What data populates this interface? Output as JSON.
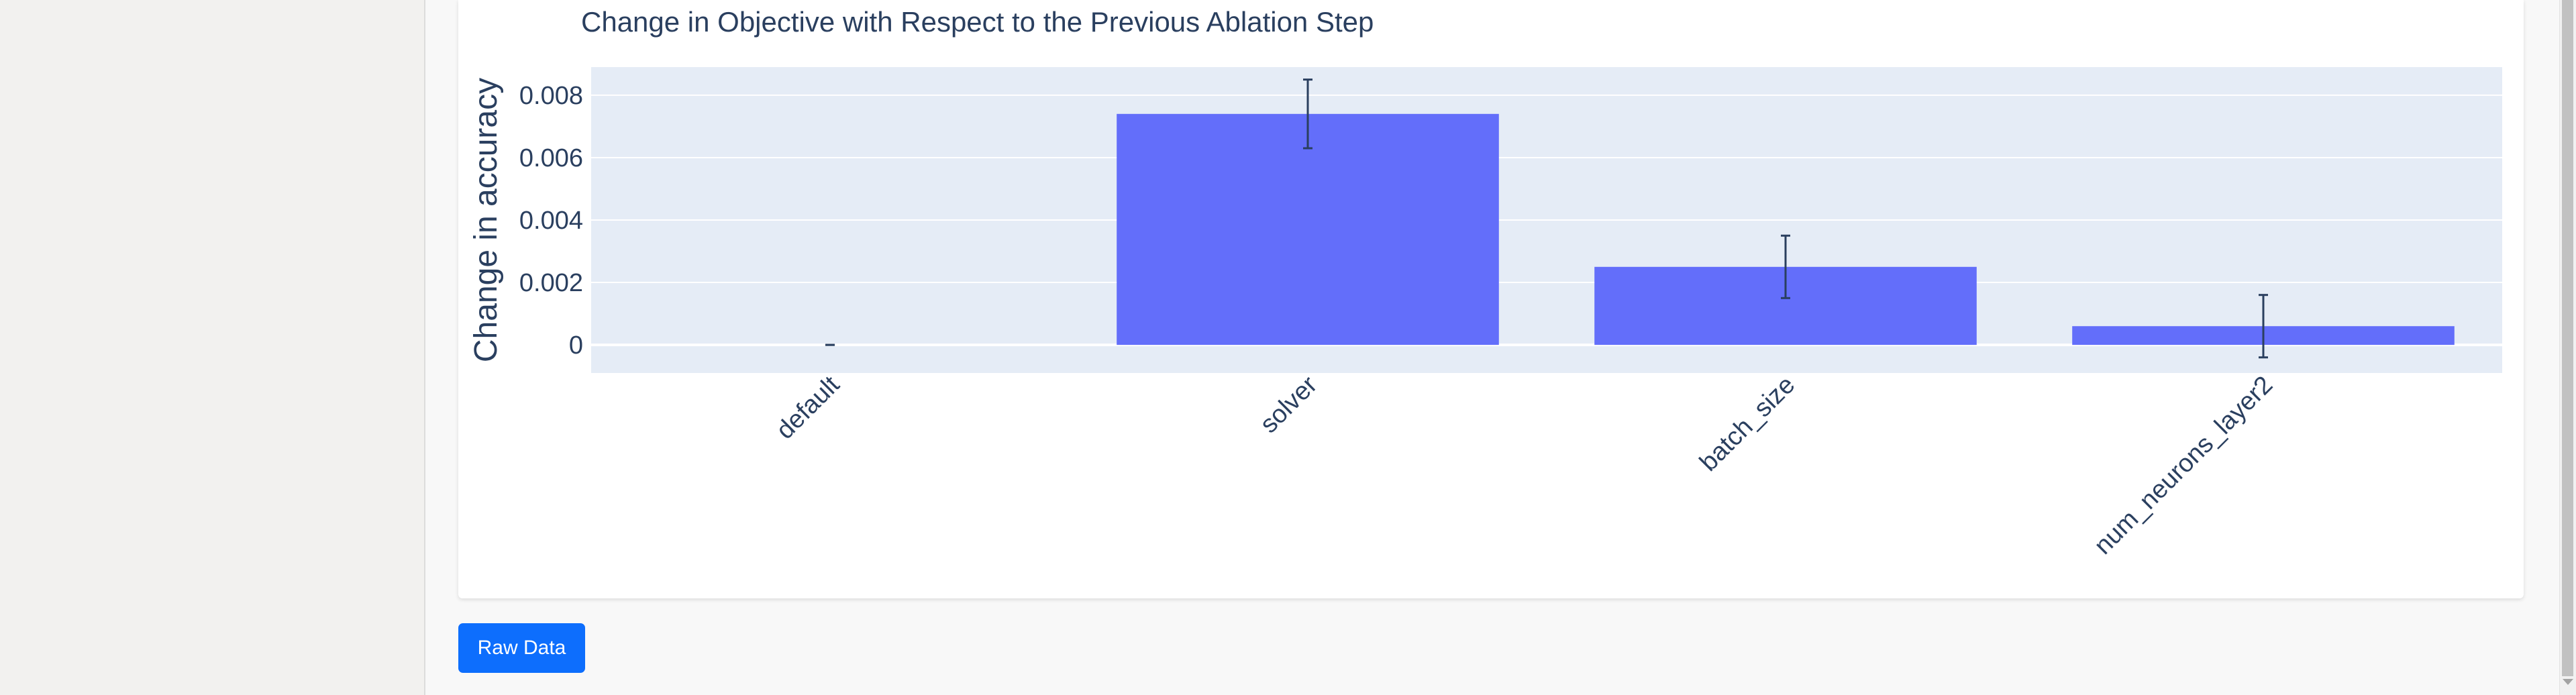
{
  "chart_data": {
    "type": "bar",
    "title": "Change in Objective with Respect to the Previous Ablation Step",
    "xlabel": "",
    "ylabel": "Change in accuracy",
    "categories": [
      "default",
      "solver",
      "batch_size",
      "num_neurons_layer2"
    ],
    "values": [
      0,
      0.0074,
      0.0025,
      0.0006
    ],
    "error": [
      0,
      0.0011,
      0.001,
      0.001
    ],
    "ylim": [
      -0.0009,
      0.0089
    ],
    "yticks": [
      0,
      0.002,
      0.004,
      0.006,
      0.008
    ],
    "ytick_labels": [
      "0",
      "0.002",
      "0.004",
      "0.006",
      "0.008"
    ],
    "grid": true,
    "colors": {
      "bar": "#636efa",
      "plot_bg": "#e5ecf6",
      "grid": "#ffffff",
      "text": "#2a3f5f",
      "error_bar": "#2a3f5f"
    }
  },
  "raw_data_button": "Raw Data"
}
